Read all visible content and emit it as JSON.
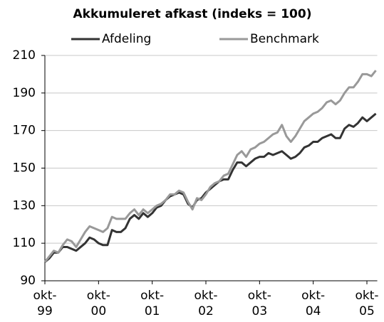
{
  "chart_data": {
    "type": "line",
    "title": "Akkumuleret afkast (indeks = 100)",
    "categories": [
      "okt-99",
      null,
      null,
      null,
      null,
      null,
      null,
      null,
      null,
      null,
      null,
      null,
      "okt-00",
      null,
      null,
      null,
      null,
      null,
      null,
      null,
      null,
      null,
      null,
      null,
      "okt-01",
      null,
      null,
      null,
      null,
      null,
      null,
      null,
      null,
      null,
      null,
      null,
      "okt-02",
      null,
      null,
      null,
      null,
      null,
      null,
      null,
      null,
      null,
      null,
      null,
      "okt-03",
      null,
      null,
      null,
      null,
      null,
      null,
      null,
      null,
      null,
      null,
      null,
      "okt-04",
      null,
      null,
      null,
      null,
      null,
      null,
      null,
      null,
      null,
      null,
      null,
      "okt-05",
      null,
      null
    ],
    "series": [
      {
        "name": "Afdeling",
        "color": "#333333",
        "values": [
          100,
          102,
          105,
          105,
          108,
          108,
          107,
          106,
          108,
          110,
          113,
          112,
          110,
          109,
          109,
          117,
          116,
          116,
          118,
          123,
          125,
          123,
          126,
          124,
          126,
          129,
          130,
          133,
          135,
          136,
          137,
          136,
          131,
          129,
          133,
          134,
          137,
          139,
          141,
          143,
          144,
          144,
          149,
          153,
          153,
          151,
          153,
          155,
          156,
          156,
          158,
          157,
          158,
          159,
          157,
          155,
          156,
          158,
          161,
          162,
          164,
          164,
          166,
          167,
          168,
          166,
          166,
          171,
          173,
          172,
          174,
          177,
          175,
          177,
          179
        ]
      },
      {
        "name": "Benchmark",
        "color": "#999999",
        "values": [
          100,
          103,
          106,
          105,
          109,
          112,
          111,
          108,
          112,
          116,
          119,
          118,
          117,
          116,
          118,
          124,
          123,
          123,
          123,
          126,
          128,
          125,
          128,
          126,
          128,
          130,
          131,
          133,
          136,
          136,
          138,
          137,
          132,
          128,
          134,
          133,
          136,
          140,
          142,
          143,
          146,
          147,
          152,
          157,
          159,
          156,
          160,
          161,
          163,
          164,
          166,
          168,
          169,
          173,
          167,
          164,
          167,
          171,
          175,
          177,
          179,
          180,
          182,
          185,
          186,
          184,
          186,
          190,
          193,
          193,
          196,
          200,
          200,
          199,
          202
        ]
      }
    ],
    "ylim": [
      90,
      210
    ],
    "yticks": [
      90,
      110,
      130,
      150,
      170,
      190,
      210
    ],
    "grid": true
  }
}
